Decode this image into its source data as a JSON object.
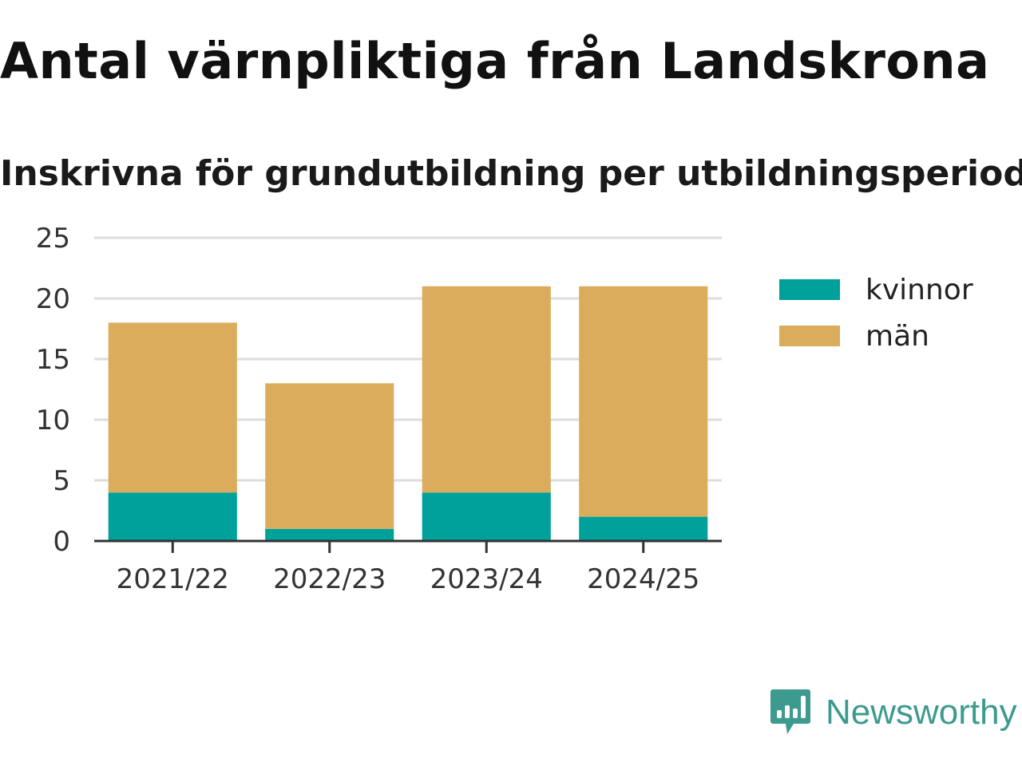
{
  "header": {
    "title": "Antal värnpliktiga från Landskrona",
    "subtitle": "Inskrivna för grundutbildning per utbildningsperiod"
  },
  "chart_data": {
    "type": "bar",
    "stacked": true,
    "categories": [
      "2021/22",
      "2022/23",
      "2023/24",
      "2024/25"
    ],
    "series": [
      {
        "name": "kvinnor",
        "values": [
          4,
          1,
          4,
          2
        ],
        "color": "#00a19a"
      },
      {
        "name": "män",
        "values": [
          14,
          12,
          17,
          19
        ],
        "color": "#daac5b"
      }
    ],
    "ylim": [
      0,
      25
    ],
    "yticks": [
      0,
      5,
      10,
      15,
      20,
      25
    ],
    "grid": true,
    "legend": "right"
  },
  "brand": {
    "name": "Newsworthy",
    "icon": "newsworthy-logo-icon",
    "color": "#3c9a8f"
  }
}
